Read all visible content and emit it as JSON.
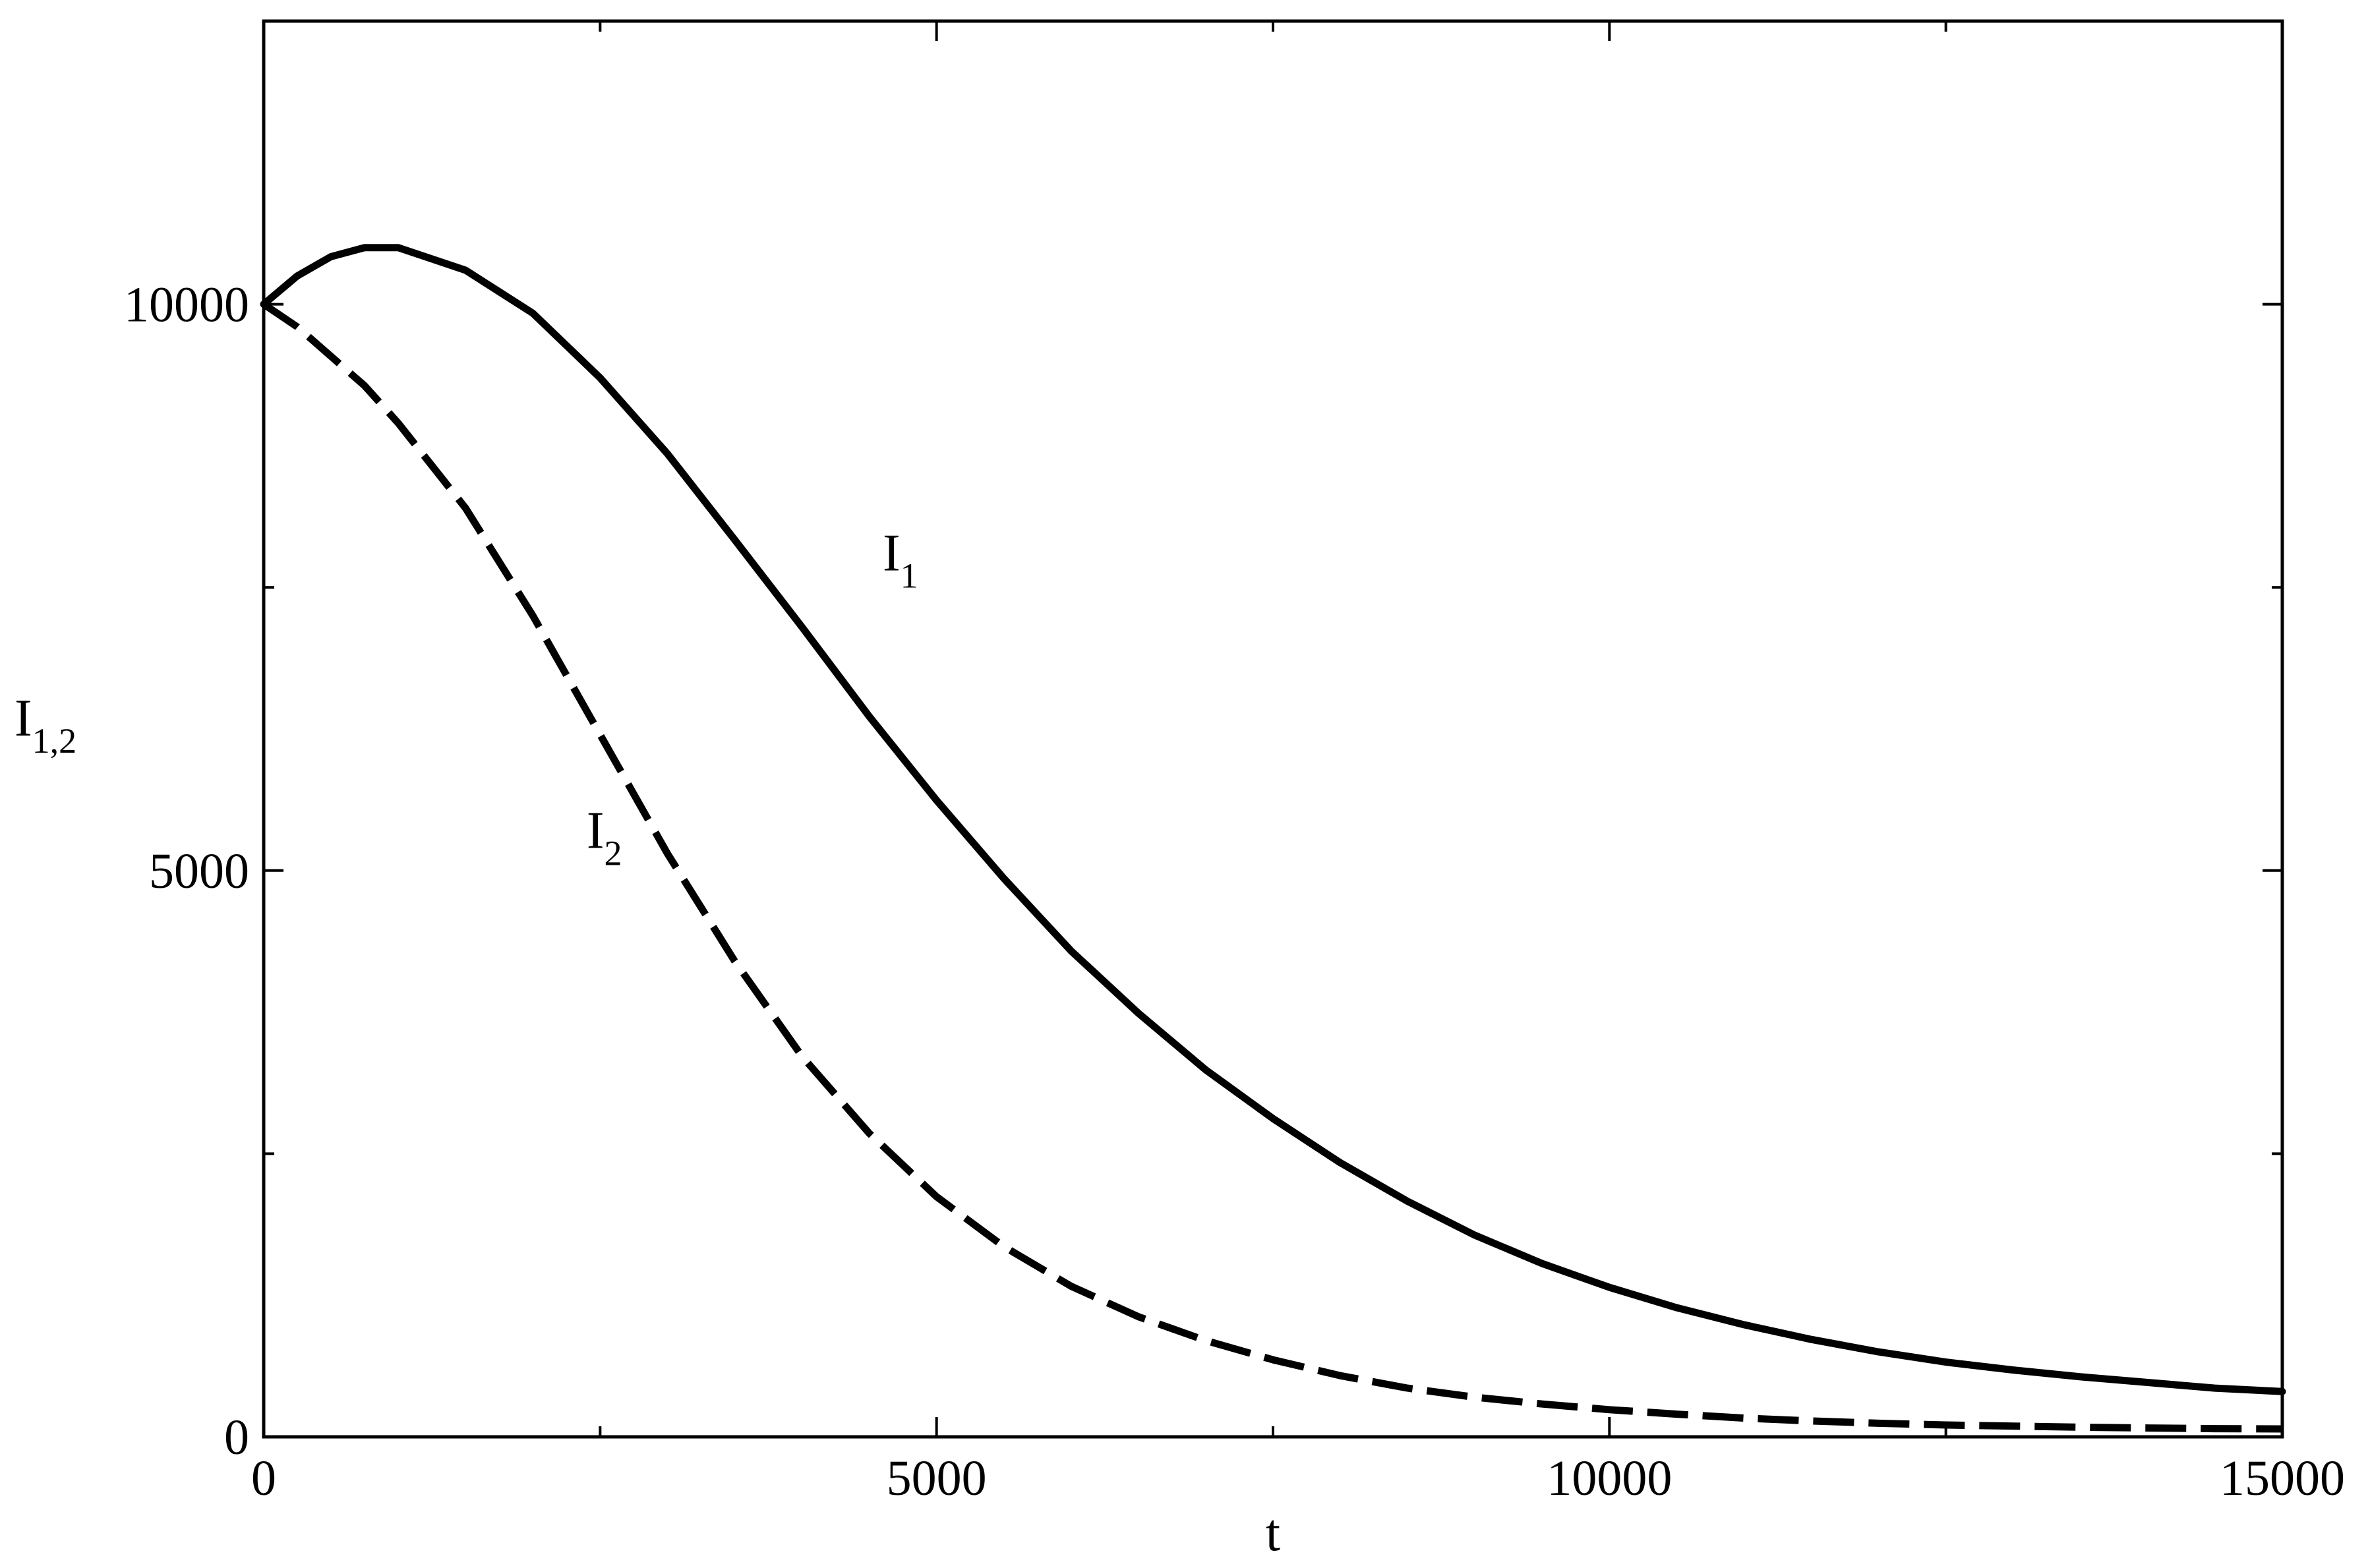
{
  "chart_data": {
    "type": "line",
    "title": "",
    "xlabel": "t",
    "ylabel_main": "I",
    "ylabel_sub": "1,2",
    "xlim": [
      0,
      15000
    ],
    "ylim": [
      0,
      12500
    ],
    "grid": false,
    "x_ticks": [
      {
        "value": 0,
        "label": "0"
      },
      {
        "value": 5000,
        "label": "5000"
      },
      {
        "value": 10000,
        "label": "10000"
      },
      {
        "value": 15000,
        "label": "15000"
      }
    ],
    "x_minor_ticks": [
      2500,
      7500,
      12500
    ],
    "y_ticks": [
      {
        "value": 0,
        "label": "0"
      },
      {
        "value": 5000,
        "label": "5000"
      },
      {
        "value": 10000,
        "label": "10000"
      }
    ],
    "y_minor_ticks": [
      2500,
      7500
    ],
    "series": [
      {
        "label_main": "I",
        "label_sub": "1",
        "label_at": [
          4600,
          7650
        ],
        "style": "solid",
        "color": "#000000",
        "x": [
          0,
          250,
          500,
          750,
          1000,
          1500,
          2000,
          2500,
          3000,
          3500,
          4000,
          4500,
          5000,
          5500,
          6000,
          6500,
          7000,
          7500,
          8000,
          8500,
          9000,
          9500,
          10000,
          10500,
          11000,
          11500,
          12000,
          12500,
          13000,
          13500,
          14000,
          14500,
          15000
        ],
        "y": [
          10000,
          10250,
          10420,
          10500,
          10500,
          10300,
          9920,
          9350,
          8680,
          7920,
          7150,
          6360,
          5620,
          4930,
          4290,
          3740,
          3240,
          2810,
          2420,
          2080,
          1780,
          1530,
          1320,
          1140,
          990,
          860,
          750,
          660,
          590,
          530,
          480,
          430,
          400
        ]
      },
      {
        "label_main": "I",
        "label_sub": "2",
        "label_at": [
          2400,
          5200
        ],
        "style": "dashed",
        "color": "#000000",
        "x": [
          0,
          250,
          500,
          750,
          1000,
          1500,
          2000,
          2500,
          3000,
          3500,
          4000,
          4500,
          5000,
          5500,
          6000,
          6500,
          7000,
          7500,
          8000,
          8500,
          9000,
          9500,
          10000,
          10500,
          11000,
          11500,
          12000,
          12500,
          13000,
          13500,
          14000,
          14500,
          15000
        ],
        "y": [
          10000,
          9800,
          9540,
          9280,
          8950,
          8200,
          7250,
          6200,
          5150,
          4200,
          3360,
          2680,
          2120,
          1680,
          1330,
          1060,
          850,
          680,
          540,
          430,
          350,
          290,
          240,
          200,
          165,
          140,
          120,
          105,
          95,
          85,
          78,
          72,
          70
        ]
      }
    ]
  }
}
